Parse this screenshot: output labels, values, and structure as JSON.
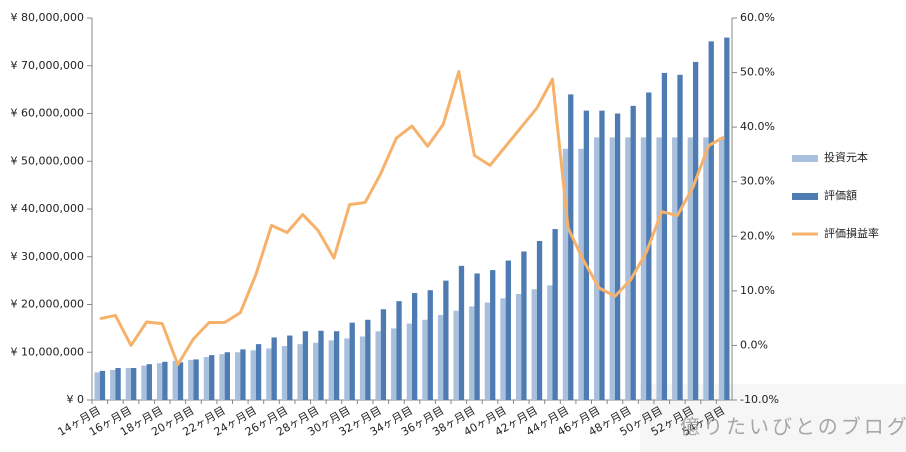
{
  "chart_data": {
    "type": "bar",
    "categories": [
      "14ヶ月目",
      null,
      "16ヶ月目",
      null,
      "18ヶ月目",
      null,
      "20ヶ月目",
      null,
      "22ヶ月目",
      null,
      "24ヶ月目",
      null,
      "26ヶ月目",
      null,
      "28ヶ月目",
      null,
      "30ヶ月目",
      null,
      "32ヶ月目",
      null,
      "34ヶ月目",
      null,
      "36ヶ月目",
      null,
      "38ヶ月目",
      null,
      "40ヶ月目",
      null,
      "42ヶ月目",
      null,
      "44ヶ月目",
      null,
      "46ヶ月目",
      null,
      "48ヶ月目",
      null,
      "50ヶ月目",
      null,
      "52ヶ月目",
      null,
      "54ヶ月目"
    ],
    "series": [
      {
        "name": "投資元本",
        "color": "#a9c0dd",
        "values": [
          5800000,
          6300000,
          6700000,
          7200000,
          7700000,
          8200000,
          8400000,
          9000000,
          9600000,
          10000000,
          10400000,
          10800000,
          11300000,
          11700000,
          12000000,
          12500000,
          12900000,
          13300000,
          14400000,
          15000000,
          16000000,
          16800000,
          17800000,
          18700000,
          19600000,
          20400000,
          21300000,
          22200000,
          23200000,
          24000000,
          52600000,
          52600000,
          55000000,
          55000000,
          55000000,
          55000000,
          55000000,
          55000000,
          55000000,
          55000000,
          55000000
        ]
      },
      {
        "name": "評価額",
        "color": "#4f7bb3",
        "values": [
          6100000,
          6700000,
          6700000,
          7500000,
          8000000,
          7900000,
          8500000,
          9400000,
          10000000,
          10600000,
          11700000,
          13100000,
          13500000,
          14400000,
          14500000,
          14400000,
          16200000,
          16800000,
          19000000,
          20700000,
          22400000,
          23000000,
          25000000,
          28100000,
          26500000,
          27200000,
          29200000,
          31100000,
          33300000,
          35800000,
          64000000,
          60600000,
          60600000,
          60000000,
          61600000,
          64400000,
          68500000,
          68100000,
          70800000,
          75100000,
          75900000
        ]
      },
      {
        "name": "評価損益率",
        "color": "#f6b26b",
        "type": "line",
        "axis": "y2",
        "values": [
          4.9,
          5.5,
          0,
          4.3,
          4,
          -3.5,
          1.2,
          4.2,
          4.2,
          6,
          13,
          22,
          20.7,
          24,
          21,
          16,
          25.8,
          26.2,
          31.5,
          38,
          40.2,
          36.5,
          40.5,
          50.2,
          34.8,
          33,
          36.5,
          40,
          43.5,
          48.8,
          21.5,
          15.5,
          10.5,
          9,
          12,
          17,
          24.5,
          23.8,
          29,
          36.6,
          38.2
        ]
      }
    ],
    "ylim": [
      0,
      80000000
    ],
    "yticks": [
      {
        "value": 0,
        "label": "¥ 0"
      },
      {
        "value": 10000000,
        "label": "¥ 10,000,000"
      },
      {
        "value": 20000000,
        "label": "¥ 20,000,000"
      },
      {
        "value": 30000000,
        "label": "¥ 30,000,000"
      },
      {
        "value": 40000000,
        "label": "¥ 40,000,000"
      },
      {
        "value": 50000000,
        "label": "¥ 50,000,000"
      },
      {
        "value": 60000000,
        "label": "¥ 60,000,000"
      },
      {
        "value": 70000000,
        "label": "¥ 70,000,000"
      },
      {
        "value": 80000000,
        "label": "¥ 80,000,000"
      }
    ],
    "y2lim": [
      -10,
      60
    ],
    "y2ticks": [
      {
        "value": -10,
        "label": "-10.0%"
      },
      {
        "value": 0,
        "label": "0.0%"
      },
      {
        "value": 10,
        "label": "10.0%"
      },
      {
        "value": 20,
        "label": "20.0%"
      },
      {
        "value": 30,
        "label": "30.0%"
      },
      {
        "value": 40,
        "label": "40.0%"
      },
      {
        "value": 50,
        "label": "50.0%"
      },
      {
        "value": 60,
        "label": "60.0%"
      }
    ],
    "legend": "right",
    "annotations": [
      "億りたいびとのブログ"
    ]
  }
}
